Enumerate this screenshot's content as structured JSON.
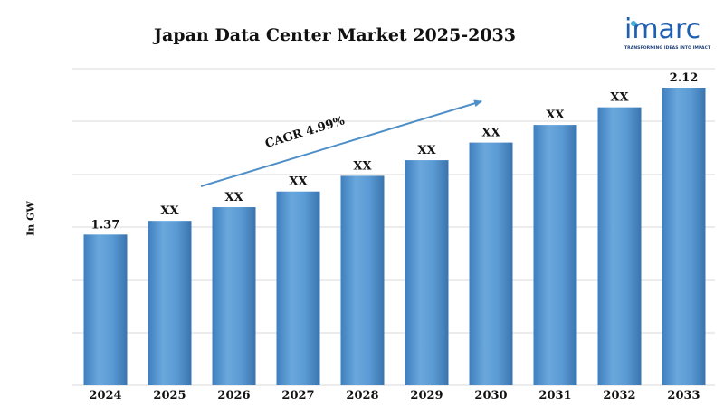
{
  "brand": {
    "logo_text": "imarc",
    "tagline": "TRANSFORMING IDEAS INTO IMPACT",
    "color": "#1f5fb0"
  },
  "colors": {
    "bar": "#5b9bd5",
    "bar_dark": "#3f7fbf",
    "arrow": "#4f8fc7",
    "grid": "#d9d9d9"
  },
  "chart_data": {
    "type": "bar",
    "title": "Japan Data Center Market 2025-2033",
    "xlabel": "",
    "ylabel": "In GW",
    "categories": [
      "2024",
      "2025",
      "2026",
      "2027",
      "2028",
      "2029",
      "2030",
      "2031",
      "2032",
      "2033"
    ],
    "values": [
      1.37,
      1.44,
      1.51,
      1.59,
      1.67,
      1.75,
      1.84,
      1.93,
      2.02,
      2.12
    ],
    "data_labels": [
      "1.37",
      "XX",
      "XX",
      "XX",
      "XX",
      "XX",
      "XX",
      "XX",
      "XX",
      "2.12"
    ],
    "annotation": "CAGR 4.99%",
    "grid": true,
    "legend": "none"
  }
}
